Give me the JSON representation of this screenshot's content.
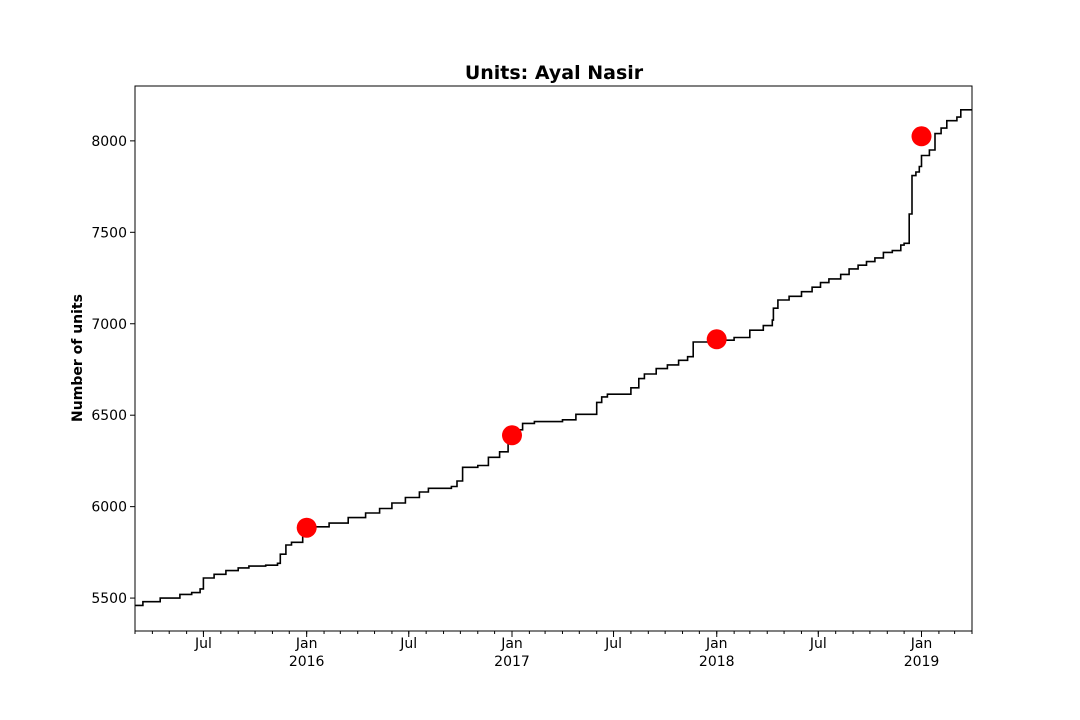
{
  "chart_data": {
    "type": "line",
    "title": "Units: Ayal Nasir",
    "xlabel": "",
    "ylabel": "Number of units",
    "xlim": [
      "2015-03-01",
      "2019-04-01"
    ],
    "ylim": [
      5320,
      8300
    ],
    "grid": false,
    "legend": "none",
    "line_color": "#000000",
    "marker_color": "#ff0000",
    "y_ticks": [
      5500,
      6000,
      6500,
      7000,
      7500,
      8000
    ],
    "x_ticks": [
      {
        "date": "2015-07-01",
        "label": "Jul"
      },
      {
        "date": "2016-01-01",
        "label": "Jan",
        "sublabel": "2016"
      },
      {
        "date": "2016-07-01",
        "label": "Jul"
      },
      {
        "date": "2017-01-01",
        "label": "Jan",
        "sublabel": "2017"
      },
      {
        "date": "2017-07-01",
        "label": "Jul"
      },
      {
        "date": "2018-01-01",
        "label": "Jan",
        "sublabel": "2018"
      },
      {
        "date": "2018-07-01",
        "label": "Jul"
      },
      {
        "date": "2019-01-01",
        "label": "Jan",
        "sublabel": "2019"
      }
    ],
    "series": [
      {
        "style": "step",
        "points": [
          [
            "2015-03-01",
            5460
          ],
          [
            "2015-03-15",
            5480
          ],
          [
            "2015-04-15",
            5500
          ],
          [
            "2015-05-20",
            5520
          ],
          [
            "2015-06-10",
            5530
          ],
          [
            "2015-06-25",
            5550
          ],
          [
            "2015-07-01",
            5610
          ],
          [
            "2015-07-20",
            5630
          ],
          [
            "2015-08-10",
            5650
          ],
          [
            "2015-09-01",
            5665
          ],
          [
            "2015-09-20",
            5675
          ],
          [
            "2015-10-20",
            5680
          ],
          [
            "2015-11-10",
            5690
          ],
          [
            "2015-11-15",
            5740
          ],
          [
            "2015-11-25",
            5790
          ],
          [
            "2015-12-05",
            5805
          ],
          [
            "2015-12-25",
            5870
          ],
          [
            "2016-01-15",
            5890
          ],
          [
            "2016-02-10",
            5910
          ],
          [
            "2016-03-15",
            5940
          ],
          [
            "2016-04-15",
            5965
          ],
          [
            "2016-05-10",
            5990
          ],
          [
            "2016-06-01",
            6020
          ],
          [
            "2016-06-25",
            6050
          ],
          [
            "2016-07-20",
            6080
          ],
          [
            "2016-08-05",
            6100
          ],
          [
            "2016-09-15",
            6110
          ],
          [
            "2016-09-25",
            6140
          ],
          [
            "2016-10-05",
            6215
          ],
          [
            "2016-11-01",
            6225
          ],
          [
            "2016-11-20",
            6270
          ],
          [
            "2016-12-10",
            6300
          ],
          [
            "2016-12-25",
            6360
          ],
          [
            "2017-01-10",
            6420
          ],
          [
            "2017-01-20",
            6455
          ],
          [
            "2017-02-10",
            6465
          ],
          [
            "2017-04-01",
            6475
          ],
          [
            "2017-04-25",
            6505
          ],
          [
            "2017-06-01",
            6570
          ],
          [
            "2017-06-10",
            6600
          ],
          [
            "2017-06-20",
            6615
          ],
          [
            "2017-08-01",
            6650
          ],
          [
            "2017-08-15",
            6700
          ],
          [
            "2017-08-25",
            6725
          ],
          [
            "2017-09-15",
            6755
          ],
          [
            "2017-10-05",
            6775
          ],
          [
            "2017-10-25",
            6800
          ],
          [
            "2017-11-10",
            6820
          ],
          [
            "2017-11-20",
            6900
          ],
          [
            "2017-12-20",
            6910
          ],
          [
            "2018-02-01",
            6925
          ],
          [
            "2018-03-01",
            6965
          ],
          [
            "2018-03-25",
            6990
          ],
          [
            "2018-04-10",
            7020
          ],
          [
            "2018-04-12",
            7085
          ],
          [
            "2018-04-20",
            7130
          ],
          [
            "2018-05-10",
            7150
          ],
          [
            "2018-06-01",
            7175
          ],
          [
            "2018-06-20",
            7200
          ],
          [
            "2018-07-05",
            7225
          ],
          [
            "2018-07-20",
            7245
          ],
          [
            "2018-08-10",
            7270
          ],
          [
            "2018-08-25",
            7300
          ],
          [
            "2018-09-10",
            7320
          ],
          [
            "2018-09-25",
            7340
          ],
          [
            "2018-10-10",
            7360
          ],
          [
            "2018-10-25",
            7390
          ],
          [
            "2018-11-10",
            7400
          ],
          [
            "2018-11-25",
            7430
          ],
          [
            "2018-12-01",
            7440
          ],
          [
            "2018-12-10",
            7600
          ],
          [
            "2018-12-15",
            7810
          ],
          [
            "2018-12-22",
            7830
          ],
          [
            "2018-12-28",
            7860
          ],
          [
            "2019-01-01",
            7920
          ],
          [
            "2019-01-15",
            7950
          ],
          [
            "2019-01-25",
            8040
          ],
          [
            "2019-02-05",
            8070
          ],
          [
            "2019-02-15",
            8110
          ],
          [
            "2019-03-05",
            8130
          ],
          [
            "2019-03-12",
            8170
          ],
          [
            "2019-04-01",
            8170
          ]
        ]
      }
    ],
    "markers": [
      [
        "2016-01-01",
        5885
      ],
      [
        "2017-01-01",
        6390
      ],
      [
        "2018-01-01",
        6915
      ],
      [
        "2019-01-01",
        8025
      ]
    ]
  }
}
